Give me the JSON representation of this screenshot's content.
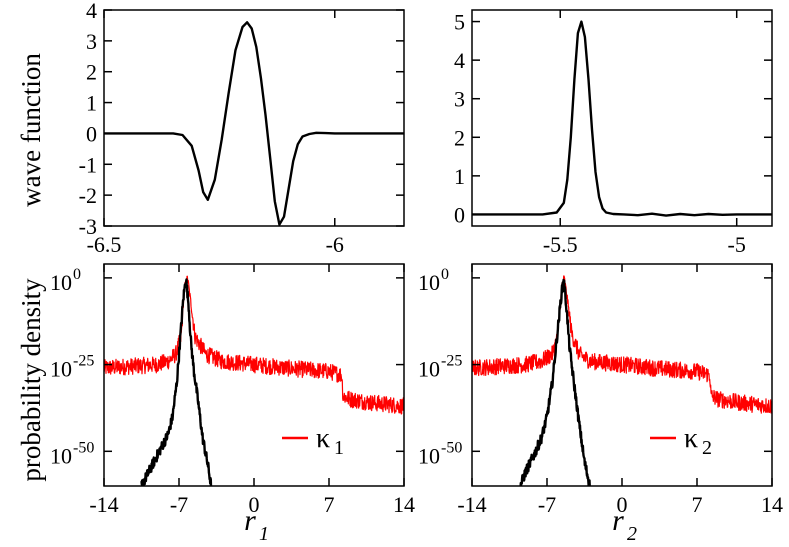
{
  "ylabels": {
    "top": "wave function",
    "bottom": "probability density"
  },
  "colors": {
    "black": "#000000",
    "red": "#ff0000"
  },
  "chart_data": [
    {
      "id": "p1",
      "type": "line",
      "xlim": [
        -6.5,
        -5.85
      ],
      "ylim": [
        -3,
        4
      ],
      "xticks": [
        {
          "v": -6.5,
          "t": "-6.5"
        },
        {
          "v": -6,
          "t": "-6"
        }
      ],
      "yticks": [
        {
          "v": -3,
          "t": "-3"
        },
        {
          "v": -2,
          "t": "-2"
        },
        {
          "v": -1,
          "t": "-1"
        },
        {
          "v": 0,
          "t": "0"
        },
        {
          "v": 1,
          "t": "1"
        },
        {
          "v": 2,
          "t": "2"
        },
        {
          "v": 3,
          "t": "3"
        },
        {
          "v": 4,
          "t": "4"
        }
      ],
      "grid": false,
      "series": [
        {
          "color": "#000000",
          "x": [
            -6.5,
            -6.35,
            -6.33,
            -6.31,
            -6.295,
            -6.285,
            -6.275,
            -6.26,
            -6.245,
            -6.23,
            -6.215,
            -6.2,
            -6.19,
            -6.18,
            -6.17,
            -6.16,
            -6.15,
            -6.14,
            -6.13,
            -6.12,
            -6.11,
            -6.1,
            -6.09,
            -6.08,
            -6.07,
            -6.055,
            -6.04,
            -6.02,
            -6.0,
            -5.97,
            -5.85
          ],
          "y": [
            0,
            0,
            -0.05,
            -0.4,
            -1.2,
            -1.9,
            -2.15,
            -1.5,
            -0.2,
            1.3,
            2.7,
            3.45,
            3.6,
            3.4,
            2.8,
            1.8,
            0.6,
            -0.8,
            -2.2,
            -2.95,
            -2.7,
            -1.8,
            -0.9,
            -0.35,
            -0.1,
            -0.02,
            0.02,
            0.01,
            0,
            0,
            0
          ]
        }
      ]
    },
    {
      "id": "p2",
      "type": "line",
      "xlim": [
        -5.75,
        -4.9
      ],
      "ylim": [
        -0.3,
        5.3
      ],
      "xticks": [
        {
          "v": -5.5,
          "t": "-5.5"
        },
        {
          "v": -5,
          "t": "-5"
        }
      ],
      "yticks": [
        {
          "v": 0,
          "t": "0"
        },
        {
          "v": 1,
          "t": "1"
        },
        {
          "v": 2,
          "t": "2"
        },
        {
          "v": 3,
          "t": "3"
        },
        {
          "v": 4,
          "t": "4"
        },
        {
          "v": 5,
          "t": "5"
        }
      ],
      "grid": false,
      "series": [
        {
          "color": "#000000",
          "x": [
            -5.75,
            -5.55,
            -5.51,
            -5.49,
            -5.48,
            -5.47,
            -5.46,
            -5.45,
            -5.44,
            -5.43,
            -5.42,
            -5.41,
            -5.4,
            -5.39,
            -5.38,
            -5.37,
            -5.35,
            -5.32,
            -5.28,
            -5.24,
            -5.2,
            -5.16,
            -5.12,
            -5.08,
            -5.04,
            -5.0,
            -4.9
          ],
          "y": [
            0,
            0,
            0.05,
            0.3,
            0.9,
            2.0,
            3.5,
            4.7,
            5.0,
            4.6,
            3.5,
            2.2,
            1.1,
            0.45,
            0.15,
            0.05,
            0.01,
            0,
            -0.02,
            0.02,
            -0.03,
            0.01,
            -0.02,
            0.01,
            -0.01,
            0,
            0
          ]
        }
      ]
    },
    {
      "id": "p3",
      "type": "line",
      "yscale": "log",
      "xlim": [
        -14,
        14
      ],
      "ylim": [
        -60,
        4
      ],
      "xlabel": "r",
      "xlabel_sub": "1",
      "xticks": [
        {
          "v": -14,
          "t": "-14"
        },
        {
          "v": -7,
          "t": "-7"
        },
        {
          "v": 0,
          "t": "0"
        },
        {
          "v": 7,
          "t": "7"
        },
        {
          "v": 14,
          "t": "14"
        }
      ],
      "yticks": [
        {
          "exp": 0,
          "base": "10",
          "sup": "0"
        },
        {
          "exp": -25,
          "base": "10",
          "sup": "-25"
        },
        {
          "exp": -50,
          "base": "10",
          "sup": "-50"
        }
      ],
      "grid": false,
      "legend": {
        "label": "κ",
        "sub": "1",
        "position": "bottom-right",
        "color": "#ff0000"
      },
      "series": [
        {
          "color": "#ff0000",
          "noisy": true,
          "x": [
            -14,
            -9,
            -8,
            -7.3,
            -6.8,
            -6.5,
            -6.2,
            -5.9,
            -5.5,
            -4.5,
            -3,
            0,
            3,
            7,
            8.2,
            8.3,
            9,
            11,
            14
          ],
          "y": [
            -26,
            -25,
            -24,
            -22,
            -17,
            -3,
            0,
            -7,
            -17,
            -22,
            -24,
            -25,
            -26,
            -27,
            -28,
            -34,
            -35,
            -36,
            -37
          ]
        },
        {
          "color": "#000000",
          "x": [
            -10.5,
            -10,
            -9,
            -8,
            -7.6,
            -7.2,
            -6.9,
            -6.6,
            -6.35,
            -6.1,
            -5.9,
            -5.6,
            -5.2,
            -4.8,
            -4.3,
            -4.0
          ],
          "y": [
            -60,
            -57,
            -51,
            -45,
            -40,
            -30,
            -18,
            -6,
            0,
            -8,
            -18,
            -27,
            -36,
            -46,
            -54,
            -60
          ]
        }
      ]
    },
    {
      "id": "p4",
      "type": "line",
      "yscale": "log",
      "xlim": [
        -14,
        14
      ],
      "ylim": [
        -60,
        4
      ],
      "xlabel": "r",
      "xlabel_sub": "2",
      "xticks": [
        {
          "v": -14,
          "t": "-14"
        },
        {
          "v": -7,
          "t": "-7"
        },
        {
          "v": 0,
          "t": "0"
        },
        {
          "v": 7,
          "t": "7"
        },
        {
          "v": 14,
          "t": "14"
        }
      ],
      "yticks": [
        {
          "exp": 0,
          "base": "10",
          "sup": "0"
        },
        {
          "exp": -25,
          "base": "10",
          "sup": "-25"
        },
        {
          "exp": -50,
          "base": "10",
          "sup": "-50"
        }
      ],
      "grid": false,
      "legend": {
        "label": "κ",
        "sub": "2",
        "position": "bottom-right",
        "color": "#ff0000"
      },
      "series": [
        {
          "color": "#ff0000",
          "noisy": true,
          "x": [
            -14,
            -9,
            -7.5,
            -6.5,
            -6.0,
            -5.6,
            -5.4,
            -5.1,
            -4.7,
            -4.0,
            -3,
            0,
            3,
            7,
            8.2,
            8.3,
            9,
            11,
            14
          ],
          "y": [
            -26,
            -25,
            -24,
            -22,
            -17,
            -2,
            0,
            -6,
            -16,
            -22,
            -24,
            -25,
            -26,
            -27,
            -28,
            -34,
            -35,
            -36,
            -37
          ]
        },
        {
          "color": "#000000",
          "x": [
            -9.5,
            -9,
            -8.2,
            -7.5,
            -7.0,
            -6.5,
            -6.1,
            -5.7,
            -5.45,
            -5.2,
            -4.9,
            -4.5,
            -4.0,
            -3.5,
            -3.0
          ],
          "y": [
            -60,
            -56,
            -51,
            -46,
            -40,
            -30,
            -18,
            -6,
            0,
            -8,
            -20,
            -30,
            -42,
            -53,
            -60
          ]
        }
      ]
    }
  ]
}
